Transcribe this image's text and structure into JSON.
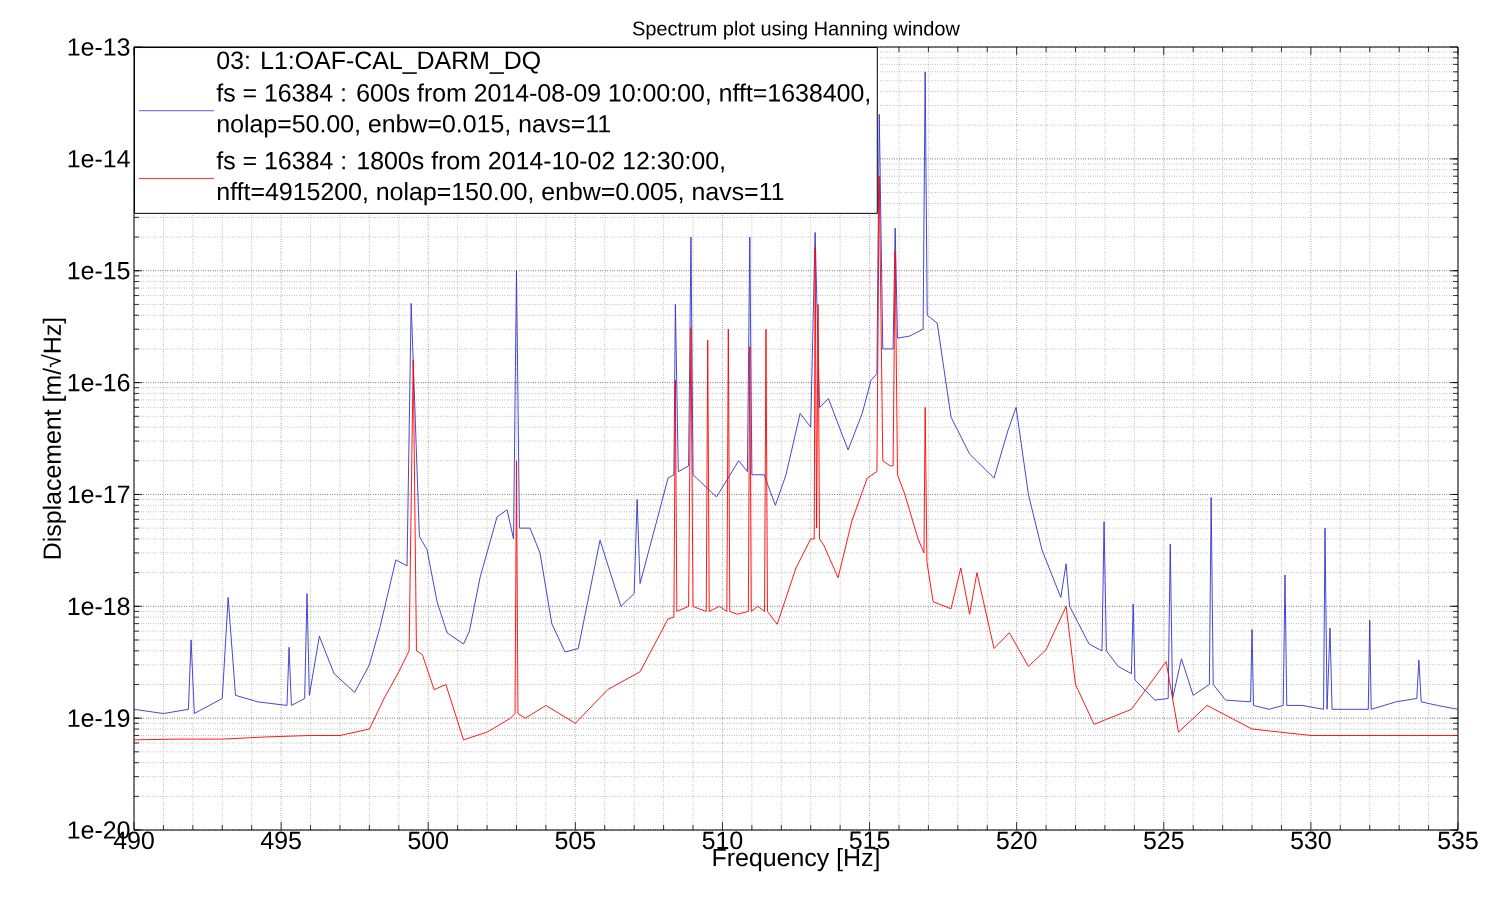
{
  "chart_data": {
    "type": "line",
    "title": "Spectrum plot using Hanning window",
    "xlabel": "Frequency [Hz]",
    "ylabel": "Displacement [m/√Hz]",
    "legend_title": "03: L1:OAF-CAL_DARM_DQ",
    "log": "y",
    "grid": true,
    "legend": "top left",
    "xlim": [
      490,
      535
    ],
    "xticks": [
      490,
      495,
      500,
      505,
      510,
      515,
      520,
      525,
      530,
      535
    ],
    "ylim": [
      1e-20,
      1e-13
    ],
    "yticks": [
      {
        "value": 1e-20,
        "label": "1e-20"
      },
      {
        "value": 1e-19,
        "label": "1e-19"
      },
      {
        "value": 1e-18,
        "label": "1e-18"
      },
      {
        "value": 1e-17,
        "label": "1e-17"
      },
      {
        "value": 1e-16,
        "label": "1e-16"
      },
      {
        "value": 1e-15,
        "label": "1e-15"
      },
      {
        "value": 1e-14,
        "label": "1e-14"
      },
      {
        "value": 1e-13,
        "label": "1e-13"
      }
    ],
    "series": [
      {
        "name": "fs = 16384 : 600s from 2014-08-09 10:00:00, nfft=1638400, nolap=50.00, enbw=0.015, navs=11",
        "color": "#3333cc",
        "x": [
          490.0,
          491.0,
          491.85,
          491.94,
          492.05,
          493.0,
          493.2,
          493.45,
          494.2,
          495.2,
          495.27,
          495.35,
          495.8,
          495.88,
          495.96,
          496.3,
          496.8,
          497.5,
          498.0,
          498.36,
          498.9,
          499.28,
          499.42,
          499.7,
          499.96,
          500.3,
          500.64,
          501.2,
          501.4,
          501.76,
          502.34,
          502.68,
          502.9,
          503.0,
          503.1,
          503.46,
          503.8,
          504.2,
          504.65,
          505.1,
          505.84,
          506.55,
          507.0,
          507.1,
          507.2,
          507.85,
          508.15,
          508.35,
          508.4,
          508.5,
          508.85,
          508.93,
          509.0,
          509.8,
          510.55,
          510.85,
          510.93,
          511.0,
          511.42,
          511.48,
          511.55,
          511.8,
          512.16,
          512.64,
          513.0,
          513.15,
          513.3,
          513.6,
          514.27,
          514.75,
          515.05,
          515.25,
          515.33,
          515.45,
          515.8,
          515.87,
          515.95,
          516.35,
          516.82,
          516.89,
          516.96,
          517.3,
          517.77,
          518.4,
          519.23,
          519.7,
          519.98,
          520.4,
          520.86,
          521.5,
          521.68,
          521.8,
          522.46,
          522.9,
          522.97,
          523.05,
          523.45,
          523.9,
          523.96,
          524.02,
          524.7,
          525.15,
          525.22,
          525.3,
          525.6,
          526.0,
          526.55,
          526.61,
          526.68,
          527.1,
          527.95,
          528.0,
          528.05,
          528.58,
          529.06,
          529.12,
          529.18,
          529.7,
          530.43,
          530.48,
          530.55,
          530.65,
          530.72,
          531.3,
          531.95,
          532.0,
          532.05,
          532.9,
          533.6,
          533.67,
          533.75,
          534.3,
          535.0
        ],
        "values": [
          1.2e-19,
          1.1e-19,
          1.2e-19,
          5e-19,
          1.1e-19,
          1.5e-19,
          1.2e-18,
          1.6e-19,
          1.4e-19,
          1.3e-19,
          4.3e-19,
          1.3e-19,
          1.5e-19,
          1.3e-18,
          1.6e-19,
          5.4e-19,
          2.5e-19,
          1.7e-19,
          3e-19,
          6.5e-19,
          2.6e-18,
          2.3e-18,
          5.1e-16,
          4.2e-18,
          3.2e-18,
          1.1e-18,
          5.8e-19,
          4.6e-19,
          6e-19,
          1.8e-18,
          6.3e-18,
          7.3e-18,
          4e-18,
          1e-15,
          5e-18,
          5e-18,
          3e-18,
          7e-19,
          3.9e-19,
          4.2e-19,
          3.9e-18,
          1e-18,
          1.3e-18,
          9e-18,
          1.6e-18,
          7e-18,
          1.4e-17,
          1.5e-17,
          5e-16,
          1.6e-17,
          1.8e-17,
          2e-15,
          1.5e-17,
          9.5e-18,
          2e-17,
          1.6e-17,
          2e-15,
          1.5e-17,
          1.5e-17,
          null,
          1.2e-17,
          8e-18,
          1.5e-17,
          5.3e-17,
          4e-17,
          2.2e-15,
          6e-17,
          7.2e-17,
          2.5e-17,
          5.3e-17,
          1.05e-16,
          1.2e-16,
          2.5e-14,
          2e-16,
          2e-16,
          2.4e-15,
          2.5e-16,
          2.6e-16,
          3e-16,
          6e-14,
          4e-16,
          3.4e-16,
          4.9e-17,
          2.3e-17,
          1.4e-17,
          3.7e-17,
          6e-17,
          1e-17,
          3.2e-18,
          1.2e-18,
          2.4e-18,
          1e-18,
          4.6e-19,
          4e-19,
          5.7e-18,
          4e-19,
          2.9e-19,
          2.5e-19,
          1.05e-18,
          2.2e-19,
          1.45e-19,
          1.5e-19,
          3.6e-18,
          1.5e-19,
          3.4e-19,
          1.6e-19,
          2e-19,
          9.4e-18,
          2e-19,
          1.45e-19,
          1.4e-19,
          6.2e-19,
          1.3e-19,
          1.2e-19,
          1.3e-19,
          1.9e-18,
          1.3e-19,
          1.3e-19,
          1.2e-19,
          5e-18,
          1.2e-19,
          6.4e-19,
          1.2e-19,
          1.2e-19,
          1.2e-19,
          7.5e-19,
          1.2e-19,
          1.4e-19,
          1.5e-19,
          3.3e-19,
          1.4e-19,
          1.3e-19,
          1.2e-19
        ]
      },
      {
        "name": "fs = 16384 : 1800s from 2014-10-02 12:30:00, nfft=4915200, nolap=150.00, enbw=0.005, navs=11",
        "color": "#ff0000",
        "x": [
          490.0,
          491.5,
          493.0,
          494.5,
          496.0,
          497.0,
          498.0,
          498.5,
          499.0,
          499.35,
          499.49,
          499.6,
          499.8,
          500.2,
          500.6,
          501.2,
          502.0,
          502.8,
          502.95,
          503.0,
          503.05,
          503.3,
          504.0,
          505.0,
          506.1,
          507.2,
          508.15,
          508.35,
          508.4,
          508.45,
          508.85,
          508.93,
          509.0,
          509.2,
          509.45,
          509.5,
          509.55,
          509.9,
          510.15,
          510.2,
          510.25,
          510.5,
          510.88,
          510.93,
          510.98,
          511.2,
          511.43,
          511.48,
          511.53,
          511.86,
          512.5,
          513.0,
          513.12,
          513.15,
          513.2,
          513.25,
          513.3,
          513.45,
          513.93,
          514.4,
          514.92,
          515.25,
          515.33,
          515.45,
          515.7,
          515.8,
          515.87,
          515.95,
          516.2,
          516.65,
          516.85,
          516.89,
          516.95,
          517.16,
          517.77,
          518.1,
          518.4,
          518.65,
          519.23,
          519.75,
          520.4,
          521.0,
          521.68,
          522.0,
          522.63,
          523.9,
          525.08,
          525.5,
          526.47,
          528.0,
          530.0,
          532.0,
          535.0
        ],
        "values": [
          6.4e-20,
          6.5e-20,
          6.5e-20,
          6.8e-20,
          7e-20,
          7e-20,
          8e-20,
          1.5e-19,
          2.6e-19,
          4e-19,
          1.6e-16,
          4e-19,
          3.7e-19,
          1.8e-19,
          2e-19,
          6.4e-20,
          7.5e-20,
          1e-19,
          1.1e-19,
          2e-17,
          1.1e-19,
          1e-19,
          1.3e-19,
          9e-20,
          1.8e-19,
          2.6e-19,
          7.7e-19,
          8e-19,
          1.05e-16,
          9e-19,
          1e-18,
          3.1e-16,
          1e-18,
          9.5e-19,
          9e-19,
          2.4e-16,
          9e-19,
          1e-18,
          9e-19,
          3e-16,
          9e-19,
          8.5e-19,
          9e-19,
          2.1e-16,
          9e-19,
          1e-18,
          9e-19,
          3e-16,
          9e-19,
          6.9e-19,
          2.2e-18,
          4e-18,
          4e-18,
          1.6e-15,
          5e-18,
          5e-16,
          4e-18,
          3.5e-18,
          1.8e-18,
          5.8e-18,
          1.4e-17,
          1.6e-17,
          7e-15,
          2e-17,
          1.8e-17,
          1.8e-17,
          1.5e-15,
          1.5e-17,
          1e-17,
          4e-18,
          3e-18,
          6e-17,
          2.5e-18,
          1.1e-18,
          9.5e-19,
          2.2e-18,
          8.5e-19,
          2e-18,
          4.2e-19,
          5.8e-19,
          2.9e-19,
          4.1e-19,
          1e-18,
          2e-19,
          8.8e-20,
          1.2e-19,
          3.2e-19,
          7.5e-20,
          1.3e-19,
          8e-20,
          7e-20,
          7e-20,
          7e-20
        ]
      }
    ]
  }
}
